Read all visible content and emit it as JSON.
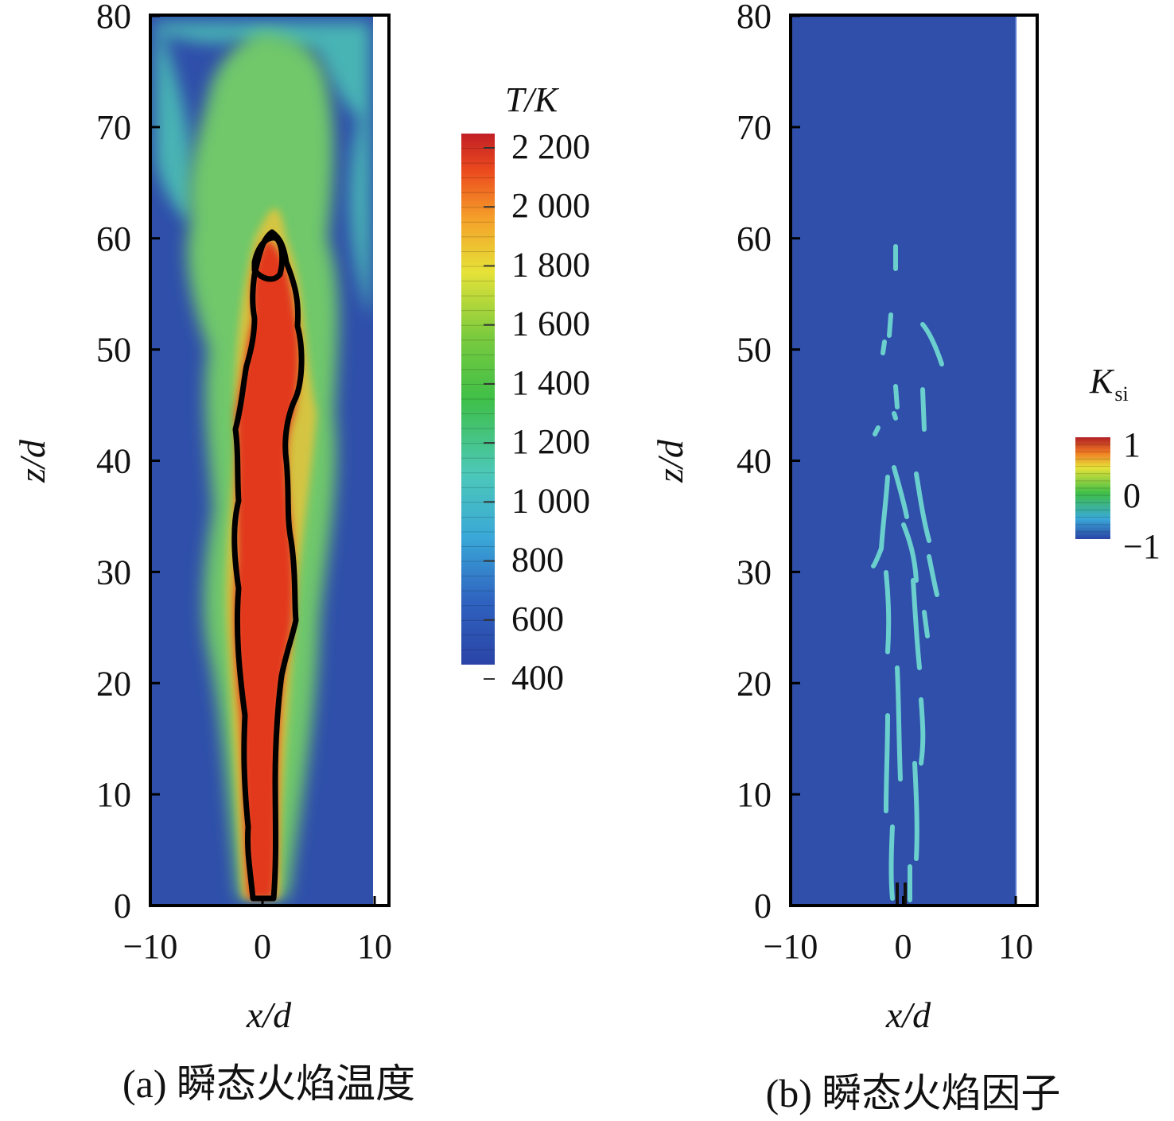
{
  "chart_data": [
    {
      "type": "heatmap",
      "caption": "(a) 瞬态火焰温度",
      "xlabel": "x/d",
      "ylabel": "z/d",
      "xlim": [
        -10,
        10
      ],
      "ylim": [
        0,
        80
      ],
      "x_ticks": [
        "−10",
        "0",
        "10"
      ],
      "y_ticks": [
        "0",
        "10",
        "20",
        "30",
        "40",
        "50",
        "60",
        "70",
        "80"
      ],
      "colorbar": {
        "title": "T/K",
        "min": 400,
        "max": 2200,
        "tick_labels": [
          "2 200",
          "2 000",
          "1 800",
          "1 600",
          "1 400",
          "1 200",
          "1 000",
          "800",
          "600",
          "400"
        ],
        "tick_values": [
          2200,
          2000,
          1800,
          1600,
          1400,
          1200,
          1000,
          800,
          600,
          400
        ]
      },
      "colors": {
        "background": "#2f4faa",
        "hot": "#d42a1c",
        "contour": "#000000"
      }
    },
    {
      "type": "heatmap",
      "caption": "(b) 瞬态火焰因子",
      "xlabel": "x/d",
      "ylabel": "z/d",
      "xlim": [
        -10,
        10
      ],
      "ylim": [
        0,
        80
      ],
      "x_ticks": [
        "−10",
        "0",
        "10"
      ],
      "y_ticks": [
        "0",
        "10",
        "20",
        "30",
        "40",
        "50",
        "60",
        "70",
        "80"
      ],
      "colorbar": {
        "title": "K",
        "title_subscript": "si",
        "min": -1,
        "max": 1,
        "tick_labels": [
          "1",
          "0",
          "−1"
        ],
        "tick_values": [
          1,
          0,
          -1
        ]
      },
      "colors": {
        "background": "#2f4faa",
        "flame_marks": "#6fd6d0"
      }
    }
  ]
}
